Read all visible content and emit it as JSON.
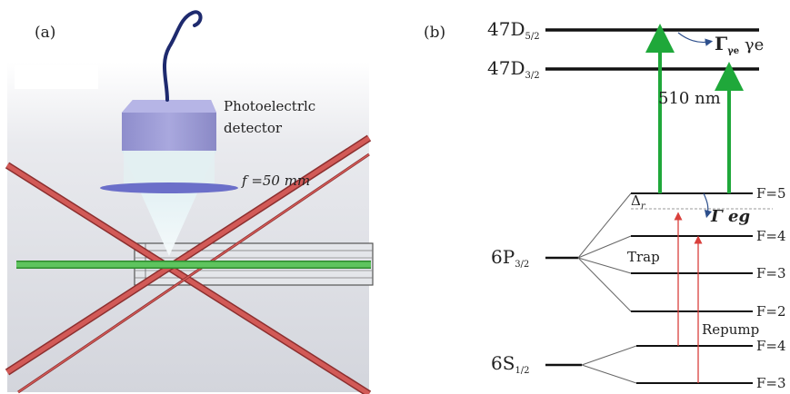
{
  "panel_a": {
    "label": "(a)",
    "detector_label_line1": "Photoelectrlc",
    "detector_label_line2": "detector",
    "lens_label": "f =50 mm",
    "colors": {
      "background": "#dfe1e6",
      "detector": "#9b9ad3",
      "cone": "#e6f1f3",
      "beam": "#3aa53a",
      "cross_beam": "#c84a4a",
      "fiber": "#1e2a6e"
    }
  },
  "panel_b": {
    "label": "(b)",
    "levels": {
      "d52": {
        "name": "47D",
        "sub": "5/2"
      },
      "d32": {
        "name": "47D",
        "sub": "3/2"
      },
      "p32": {
        "name": "6P",
        "sub": "3/2"
      },
      "s12": {
        "name": "6S",
        "sub": "1/2"
      }
    },
    "hyperfine": {
      "p_f5": "F=5",
      "p_f4": "F=4",
      "p_f3": "F=3",
      "p_f2": "F=2",
      "s_f4": "F=4",
      "s_f3": "F=3"
    },
    "annotations": {
      "wavelength": "510 nm",
      "gamma_e_symbol": "Γ",
      "gamma_e_sub": "γe",
      "gamma_e_tail": " γe",
      "gamma_eg": "Γ eg",
      "delta": "Δ",
      "delta_sub": "r",
      "trap": "Trap",
      "repump": "Repump"
    },
    "colors": {
      "laser_510": "#1fa83a",
      "laser_trap": "#d9403c",
      "decay_arrow": "#2d4f8c",
      "level": "#111111"
    }
  }
}
